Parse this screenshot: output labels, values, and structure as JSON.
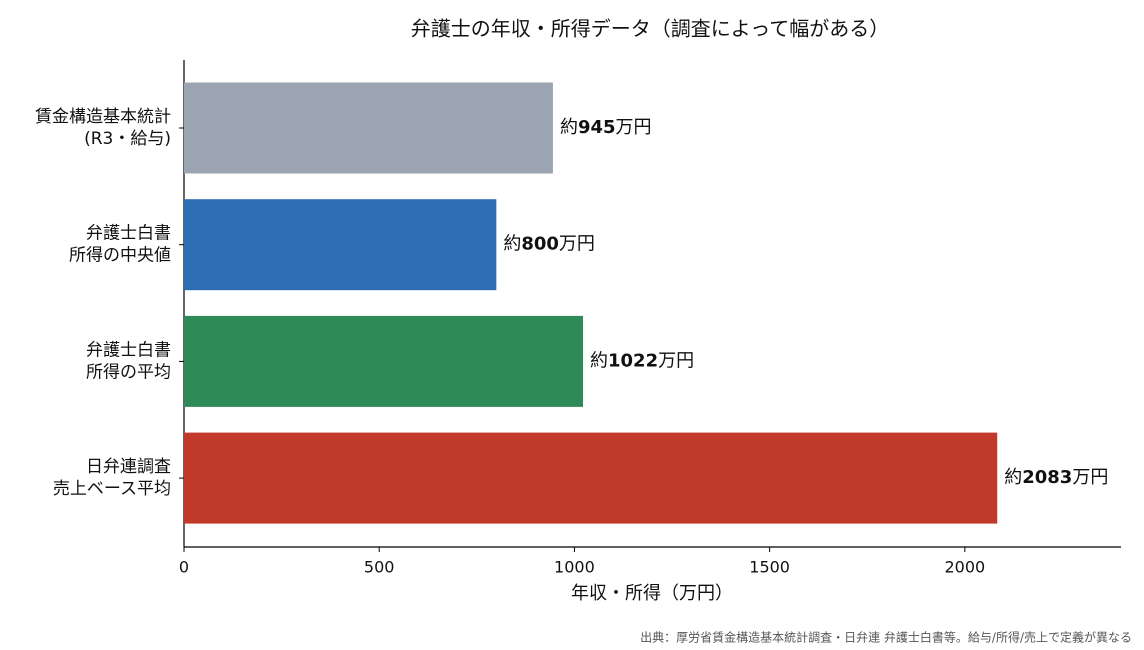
{
  "chart_data": {
    "type": "barh",
    "title": "弁護士の年収・所得データ（調査によって幅がある）",
    "xlabel": "年収・所得（万円）",
    "source": "出典：厚労省賃金構造基本統計調査・日弁連 弁護士白書等。給与/所得/売上で定義が異なる",
    "categories": [
      [
        "賃金構造基本統計",
        "(R3・給与)"
      ],
      [
        "弁護士白書",
        "所得の中央値"
      ],
      [
        "弁護士白書",
        "所得の平均"
      ],
      [
        "日弁連調査",
        "売上ベース平均"
      ]
    ],
    "values": [
      945,
      800,
      1022,
      2083
    ],
    "value_labels": [
      "約945万円",
      "約800万円",
      "約1022万円",
      "約2083万円"
    ],
    "colors": [
      "#9aa5b1",
      "#2e6db4",
      "#2e8b57",
      "#c0392b"
    ],
    "xlim": [
      0,
      2400
    ],
    "xticks": [
      0,
      500,
      1000,
      1500,
      2000
    ]
  }
}
